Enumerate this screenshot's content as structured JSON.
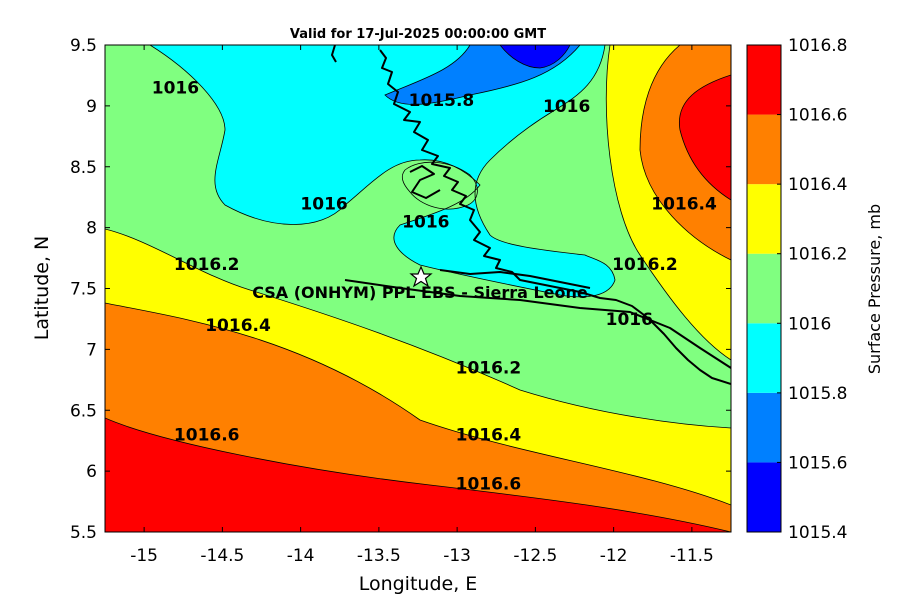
{
  "title": "Valid for 17-Jul-2025 00:00:00 GMT",
  "xlabel": "Longitude, E",
  "ylabel": "Latitude, N",
  "site_label": "CSA (ONHYM) PPL EBS  - Sierra Leone",
  "colorbar": {
    "label": "Surface Pressure, mb",
    "tick_labels": [
      "1015.4",
      "1015.6",
      "1015.8",
      "1016",
      "1016.2",
      "1016.4",
      "1016.6",
      "1016.8"
    ],
    "colors": [
      "#0000ff",
      "#0080ff",
      "#00ffff",
      "#80ff80",
      "#ffff00",
      "#ff8000",
      "#ff0000",
      "#800000"
    ]
  },
  "contour_labels": [
    {
      "text": "1016",
      "lon": -14.8,
      "lat": 9.1
    },
    {
      "text": "1015.8",
      "lon": -13.1,
      "lat": 9.0
    },
    {
      "text": "1016",
      "lon": -12.3,
      "lat": 8.95
    },
    {
      "text": "1016",
      "lon": -13.85,
      "lat": 8.15
    },
    {
      "text": "1016",
      "lon": -13.2,
      "lat": 8.0
    },
    {
      "text": "1016.4",
      "lon": -11.55,
      "lat": 8.15
    },
    {
      "text": "1016.2",
      "lon": -11.8,
      "lat": 7.65
    },
    {
      "text": "1016.2",
      "lon": -14.6,
      "lat": 7.65
    },
    {
      "text": "1016",
      "lon": -11.9,
      "lat": 7.2
    },
    {
      "text": "1016.4",
      "lon": -14.4,
      "lat": 7.15
    },
    {
      "text": "1016.2",
      "lon": -12.8,
      "lat": 6.8
    },
    {
      "text": "1016.4",
      "lon": -12.8,
      "lat": 6.25
    },
    {
      "text": "1016.6",
      "lon": -14.6,
      "lat": 6.25
    },
    {
      "text": "1016.6",
      "lon": -12.8,
      "lat": 5.85
    }
  ],
  "chart_data": {
    "type": "heatmap",
    "title": "Valid for 17-Jul-2025 00:00:00 GMT",
    "xlabel": "Longitude, E",
    "ylabel": "Latitude, N",
    "xlim": [
      -15.25,
      -11.25
    ],
    "ylim": [
      5.5,
      9.5
    ],
    "x_ticks": [
      -15,
      -14.5,
      -14,
      -13.5,
      -13,
      -12.5,
      -12,
      -11.5
    ],
    "x_tick_labels": [
      "-15",
      "-14.5",
      "-14",
      "-13.5",
      "-13",
      "-12.5",
      "-12",
      "-11.5"
    ],
    "y_ticks": [
      5.5,
      6,
      6.5,
      7,
      7.5,
      8,
      8.5,
      9,
      9.5
    ],
    "y_tick_labels": [
      "5.5",
      "6",
      "6.5",
      "7",
      "7.5",
      "8",
      "8.5",
      "9",
      "9.5"
    ],
    "contour_levels": [
      1015.4,
      1015.6,
      1015.8,
      1016,
      1016.2,
      1016.4,
      1016.6,
      1016.8
    ],
    "site_marker": {
      "lon": -13.23,
      "lat": 7.58,
      "symbol": "star"
    },
    "grid": false
  }
}
